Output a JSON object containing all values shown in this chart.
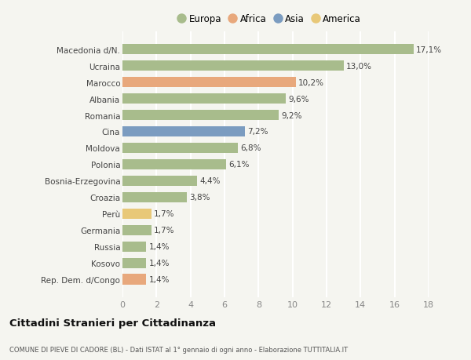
{
  "categories": [
    "Rep. Dem. d/Congo",
    "Kosovo",
    "Russia",
    "Germania",
    "Perù",
    "Croazia",
    "Bosnia-Erzegovina",
    "Polonia",
    "Moldova",
    "Cina",
    "Romania",
    "Albania",
    "Marocco",
    "Ucraina",
    "Macedonia d/N."
  ],
  "values": [
    1.4,
    1.4,
    1.4,
    1.7,
    1.7,
    3.8,
    4.4,
    6.1,
    6.8,
    7.2,
    9.2,
    9.6,
    10.2,
    13.0,
    17.1
  ],
  "labels": [
    "1,4%",
    "1,4%",
    "1,4%",
    "1,7%",
    "1,7%",
    "3,8%",
    "4,4%",
    "6,1%",
    "6,8%",
    "7,2%",
    "9,2%",
    "9,6%",
    "10,2%",
    "13,0%",
    "17,1%"
  ],
  "colors": [
    "#e8a87c",
    "#a8bc8c",
    "#a8bc8c",
    "#a8bc8c",
    "#e8c878",
    "#a8bc8c",
    "#a8bc8c",
    "#a8bc8c",
    "#a8bc8c",
    "#7b9cc0",
    "#a8bc8c",
    "#a8bc8c",
    "#e8a87c",
    "#a8bc8c",
    "#a8bc8c"
  ],
  "legend": {
    "Europa": "#a8bc8c",
    "Africa": "#e8a87c",
    "Asia": "#7b9cc0",
    "America": "#e8c878"
  },
  "xlim": [
    0,
    18
  ],
  "xticks": [
    0,
    2,
    4,
    6,
    8,
    10,
    12,
    14,
    16,
    18
  ],
  "title": "Cittadini Stranieri per Cittadinanza",
  "subtitle": "COMUNE DI PIEVE DI CADORE (BL) - Dati ISTAT al 1° gennaio di ogni anno - Elaborazione TUTTITALIA.IT",
  "background_color": "#f5f5f0",
  "grid_color": "#ffffff",
  "bar_height": 0.65
}
